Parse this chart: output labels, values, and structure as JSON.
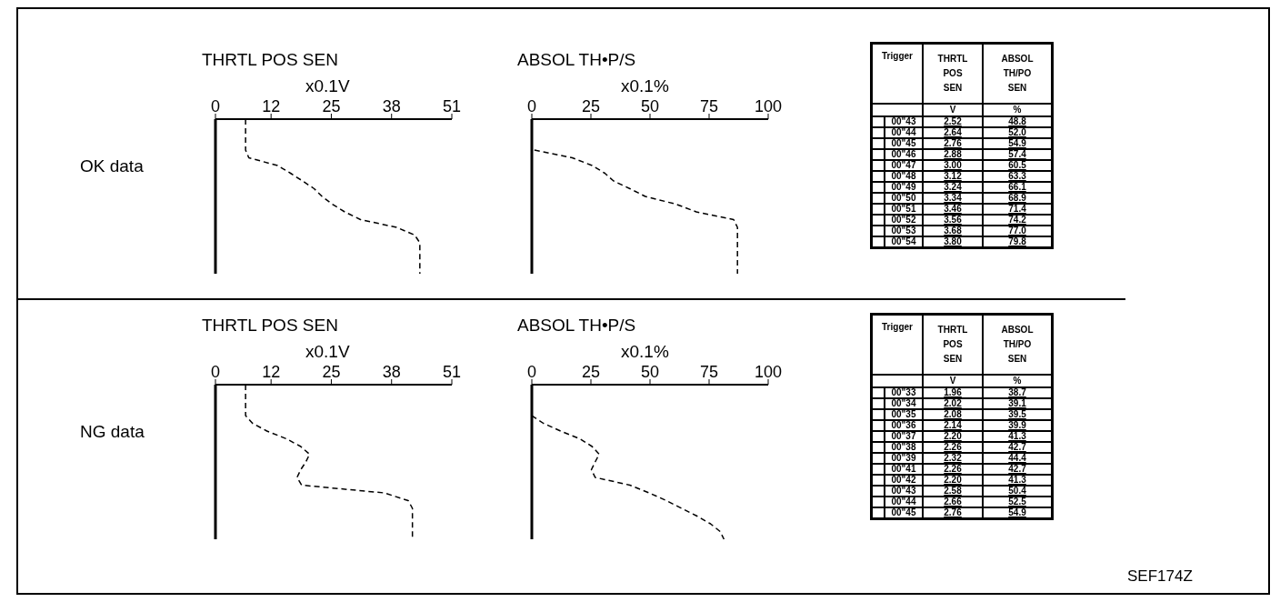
{
  "chart_data": [
    {
      "type": "line",
      "title": "THRTL POS SEN",
      "xlabel": "x0.1V",
      "orientation": "horizontal",
      "categories": [
        null,
        null,
        null,
        null,
        null,
        null,
        null,
        null,
        null,
        null,
        null,
        null,
        null,
        null,
        null,
        null,
        null,
        null,
        null,
        null,
        null
      ],
      "series": [
        {
          "color": "#000000",
          "values": [
            6.5,
            6.5,
            6.5,
            6.5,
            6.5,
            7.2,
            13.4,
            16.2,
            18.8,
            21.3,
            23.0,
            25.2,
            27.9,
            31.3,
            39.1,
            43.0,
            44.1,
            44.1,
            44.1,
            44.1,
            44.1
          ]
        }
      ],
      "xlim": [
        0,
        51
      ],
      "xticks": [
        0,
        12,
        25,
        38,
        51
      ],
      "tick_labels": "x",
      "line_style": "dashed",
      "marker": "none",
      "annotations": [
        "OK data"
      ]
    },
    {
      "type": "line",
      "title": "ABSOL TH•P/S",
      "xlabel": "x0.1%",
      "orientation": "horizontal",
      "categories": [
        null,
        null,
        null,
        null,
        null,
        null,
        null,
        null,
        null,
        null,
        null,
        null,
        null,
        null,
        null,
        null,
        null,
        null,
        null,
        null,
        null
      ],
      "series": [
        {
          "color": "#000000",
          "values": [
            null,
            null,
            null,
            null,
            1.1,
            17.1,
            25.5,
            30.9,
            34.6,
            41.5,
            48,
            61,
            69.6,
            85.4,
            87,
            87,
            87,
            87,
            87,
            87,
            87
          ]
        }
      ],
      "xlim": [
        0,
        100
      ],
      "xticks": [
        0,
        25,
        50,
        75,
        100
      ],
      "tick_labels": "x",
      "line_style": "dashed",
      "marker": "none"
    },
    {
      "type": "other",
      "xlabel": "Trigger",
      "categories": [
        "00\"43",
        "00\"44",
        "00\"45",
        "00\"46",
        "00\"47",
        "00\"48",
        "00\"49",
        "00\"50",
        "00\"51",
        "00\"52",
        "00\"53",
        "00\"54"
      ],
      "series": [
        {
          "name": "THRTL POS SEN",
          "values": [
            2.52,
            2.64,
            2.76,
            2.88,
            3.0,
            3.12,
            3.24,
            3.34,
            3.46,
            3.56,
            3.68,
            3.8
          ],
          "value_labels": [
            "2.52",
            "2.64",
            "2.76",
            "2.88",
            "3.00",
            "3.12",
            "3.24",
            "3.34",
            "3.46",
            "3.56",
            "3.68",
            "3.80"
          ]
        },
        {
          "name": "ABSOL TH/PO SEN",
          "values": [
            48.8,
            52.0,
            54.9,
            57.4,
            60.5,
            63.3,
            66.1,
            68.9,
            71.4,
            74.2,
            77.0,
            79.8
          ],
          "value_labels": [
            "48.8",
            "52.0",
            "54.9",
            "57.4",
            "60.5",
            "63.3",
            "66.1",
            "68.9",
            "71.4",
            "74.2",
            "77.0",
            "79.8"
          ]
        }
      ],
      "annotations": [
        "V",
        "%"
      ]
    },
    {
      "type": "line",
      "title": "THRTL POS SEN",
      "xlabel": "x0.1V",
      "orientation": "horizontal",
      "categories": [
        null,
        null,
        null,
        null,
        null,
        null,
        null,
        null,
        null,
        null,
        null,
        null,
        null,
        null,
        null,
        null,
        null,
        null,
        null,
        null,
        null
      ],
      "series": [
        {
          "color": "#000000",
          "values": [
            6.5,
            6.5,
            6.5,
            6.5,
            6.5,
            8.0,
            11.1,
            15.3,
            18.4,
            20.3,
            19.5,
            18.4,
            17.6,
            18.6,
            36.4,
            41.6,
            42.5,
            42.5,
            42.5,
            42.5,
            42.5
          ]
        }
      ],
      "xlim": [
        0,
        51
      ],
      "xticks": [
        0,
        12,
        25,
        38,
        51
      ],
      "tick_labels": "x",
      "line_style": "dashed",
      "marker": "none",
      "annotations": [
        "NG data"
      ]
    },
    {
      "type": "line",
      "title": "ABSOL TH•P/S",
      "xlabel": "x0.1%",
      "orientation": "horizontal",
      "categories": [
        null,
        null,
        null,
        null,
        null,
        null,
        null,
        null,
        null,
        null,
        null,
        null,
        null,
        null,
        null,
        null,
        null,
        null,
        null,
        null,
        null
      ],
      "series": [
        {
          "color": "#000000",
          "values": [
            null,
            null,
            null,
            null,
            0,
            4.9,
            12.2,
            20.3,
            25.5,
            28.5,
            26.8,
            25.2,
            26.8,
            41.5,
            49.6,
            56.9,
            63.4,
            69.9,
            75.6,
            79.7,
            81.3
          ]
        }
      ],
      "xlim": [
        0,
        100
      ],
      "xticks": [
        0,
        25,
        50,
        75,
        100
      ],
      "tick_labels": "x",
      "line_style": "dashed",
      "marker": "none"
    },
    {
      "type": "other",
      "xlabel": "Trigger",
      "categories": [
        "00\"33",
        "00\"34",
        "00\"35",
        "00\"36",
        "00\"37",
        "00\"38",
        "00\"39",
        "00\"41",
        "00\"42",
        "00\"43",
        "00\"44",
        "00\"45"
      ],
      "series": [
        {
          "name": "THRTL POS SEN",
          "values": [
            1.96,
            2.02,
            2.08,
            2.14,
            2.2,
            2.26,
            2.32,
            2.26,
            2.2,
            2.58,
            2.66,
            2.76
          ],
          "value_labels": [
            "1.96",
            "2.02",
            "2.08",
            "2.14",
            "2.20",
            "2.26",
            "2.32",
            "2.26",
            "2.20",
            "2.58",
            "2.66",
            "2.76"
          ]
        },
        {
          "name": "ABSOL TH/PO SEN",
          "values": [
            38.7,
            39.1,
            39.5,
            39.9,
            41.3,
            42.7,
            44.4,
            42.7,
            41.3,
            50.4,
            52.5,
            54.9
          ],
          "value_labels": [
            "38.7",
            "39.1",
            "39.5",
            "39.9",
            "41.3",
            "42.7",
            "44.4",
            "42.7",
            "41.3",
            "50.4",
            "52.5",
            "54.9"
          ]
        }
      ],
      "annotations": [
        "V",
        "%",
        "SEF174Z"
      ]
    }
  ]
}
